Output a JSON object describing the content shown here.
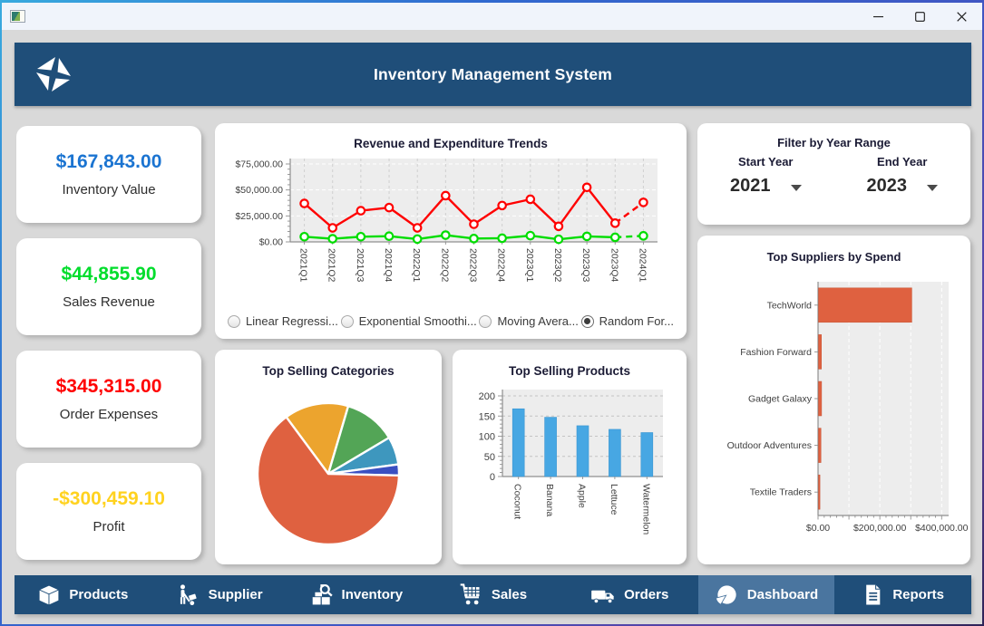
{
  "titlebar": {
    "controls": [
      {
        "name": "minimize"
      },
      {
        "name": "maximize"
      },
      {
        "name": "close"
      }
    ]
  },
  "header": {
    "title": "Inventory Management System"
  },
  "stats": [
    {
      "value": "$167,843.00",
      "label": "Inventory Value",
      "color": "#1b74d1"
    },
    {
      "value": "$44,855.90",
      "label": "Sales Revenue",
      "color": "#00dd2c"
    },
    {
      "value": "$345,315.00",
      "label": "Order Expenses",
      "color": "#ff0000"
    },
    {
      "value": "-$300,459.10",
      "label": "Profit",
      "color": "#ffd21f"
    }
  ],
  "filter": {
    "title": "Filter by Year Range",
    "start_label": "Start Year",
    "start_value": "2021",
    "end_label": "End Year",
    "end_value": "2023"
  },
  "nav": {
    "items": [
      {
        "label": "Products",
        "icon": "box-icon",
        "selected": false
      },
      {
        "label": "Supplier",
        "icon": "hand-truck-icon",
        "selected": false
      },
      {
        "label": "Inventory",
        "icon": "magnifier-boxes-icon",
        "selected": false
      },
      {
        "label": "Sales",
        "icon": "shopping-cart-icon",
        "selected": false
      },
      {
        "label": "Orders",
        "icon": "truck-icon",
        "selected": false
      },
      {
        "label": "Dashboard",
        "icon": "pie-chart-icon",
        "selected": true
      },
      {
        "label": "Reports",
        "icon": "document-icon",
        "selected": false
      }
    ]
  },
  "chart_data": [
    {
      "type": "line",
      "title": "Revenue and Expenditure Trends",
      "categories": [
        "2021Q1",
        "2021Q2",
        "2021Q3",
        "2021Q4",
        "2022Q1",
        "2022Q2",
        "2022Q3",
        "2022Q4",
        "2023Q1",
        "2023Q2",
        "2023Q3",
        "2023Q4",
        "2024Q1"
      ],
      "series": [
        {
          "name": "red-series",
          "color": "#ff0000",
          "values": [
            37000,
            13500,
            30000,
            33000,
            13500,
            44500,
            17000,
            35000,
            41000,
            15000,
            52500,
            18000,
            38000
          ]
        },
        {
          "name": "green-series",
          "color": "#00dd00",
          "values": [
            5000,
            3000,
            5000,
            5500,
            2700,
            6500,
            3200,
            3500,
            6000,
            2500,
            5300,
            4400,
            5800
          ]
        }
      ],
      "ylim": [
        0,
        75000
      ],
      "yticks": [
        {
          "v": 0,
          "label": "$0.00"
        },
        {
          "v": 25000,
          "label": "$25,000.00"
        },
        {
          "v": 50000,
          "label": "$50,000.00"
        },
        {
          "v": 75000,
          "label": "$75,000.00"
        }
      ],
      "forecast_dash_from_index": 12,
      "plot_bg": "#ededed",
      "forecast_options": [
        {
          "label": "Linear Regressi...",
          "selected": false
        },
        {
          "label": "Exponential Smoothi...",
          "selected": false
        },
        {
          "label": "Moving Avera...",
          "selected": false
        },
        {
          "label": "Random For...",
          "selected": true
        }
      ]
    },
    {
      "type": "pie",
      "title": "Top Selling Categories",
      "values": [
        14.7,
        11.9,
        6.4,
        2.5,
        64.5
      ],
      "colors": [
        "#eca42e",
        "#53a556",
        "#3e97be",
        "#3a4fc1",
        "#df6140"
      ],
      "start_angle_deg": -36.5
    },
    {
      "type": "bar",
      "title": "Top Selling Products",
      "categories": [
        "Coconut",
        "Banana",
        "Apple",
        "Lettuce",
        "Watermelon"
      ],
      "values": [
        168,
        147,
        126,
        117,
        109
      ],
      "bar_color": "#47a7e3",
      "ylim": [
        0,
        200
      ],
      "yticks": [
        0,
        50,
        100,
        150,
        200
      ],
      "plot_bg": "#ededed"
    },
    {
      "type": "hbar",
      "title": "Top Suppliers by Spend",
      "categories": [
        "TechWorld",
        "Fashion Forward",
        "Gadget Galaxy",
        "Outdoor Adventures",
        "Textile Traders"
      ],
      "values": [
        302000,
        9500,
        10000,
        8000,
        2500
      ],
      "bar_color": "#df6140",
      "xlim": [
        0,
        405000
      ],
      "xticks": [
        {
          "v": 0,
          "label": "$0.00"
        },
        {
          "v": 200000,
          "label": "$200,000.00"
        },
        {
          "v": 400000,
          "label": "$400,000.00"
        }
      ],
      "gridline_step": 100000,
      "plot_bg": "#ededed"
    }
  ]
}
